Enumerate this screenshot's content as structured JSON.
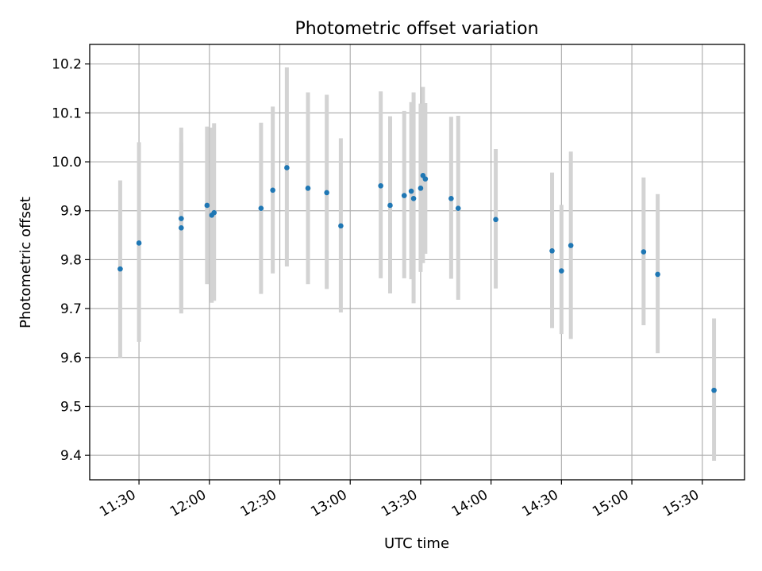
{
  "chart_data": {
    "type": "scatter",
    "title": "Photometric offset variation",
    "xlabel": "UTC time",
    "ylabel": "Photometric offset",
    "x_unit": "HH:MM UTC",
    "xlim": [
      "11:09",
      "15:48"
    ],
    "ylim": [
      9.35,
      10.24
    ],
    "x_ticks": [
      "11:30",
      "12:00",
      "12:30",
      "13:00",
      "13:30",
      "14:00",
      "14:30",
      "15:00",
      "15:30"
    ],
    "y_ticks": [
      "9.4",
      "9.5",
      "9.6",
      "9.7",
      "9.8",
      "9.9",
      "10.0",
      "10.1",
      "10.2"
    ],
    "grid": true,
    "colors": {
      "point": "#1f77b4",
      "errorbar": "#d3d3d3",
      "grid": "#b0b0b0"
    },
    "points": [
      {
        "x": "11:22",
        "y": 9.781,
        "lo": 9.6,
        "hi": 9.962
      },
      {
        "x": "11:30",
        "y": 9.834,
        "lo": 9.632,
        "hi": 10.04
      },
      {
        "x": "11:48",
        "y": 9.865,
        "lo": 9.69,
        "hi": 10.04
      },
      {
        "x": "11:48",
        "y": 9.884,
        "lo": 9.698,
        "hi": 10.07
      },
      {
        "x": "11:59",
        "y": 9.911,
        "lo": 9.75,
        "hi": 10.072
      },
      {
        "x": "12:01",
        "y": 9.891,
        "lo": 9.712,
        "hi": 10.07
      },
      {
        "x": "12:02",
        "y": 9.896,
        "lo": 9.716,
        "hi": 10.079
      },
      {
        "x": "12:22",
        "y": 9.905,
        "lo": 9.73,
        "hi": 10.08
      },
      {
        "x": "12:27",
        "y": 9.942,
        "lo": 9.772,
        "hi": 10.113
      },
      {
        "x": "12:33",
        "y": 9.988,
        "lo": 9.786,
        "hi": 10.193
      },
      {
        "x": "12:42",
        "y": 9.946,
        "lo": 9.75,
        "hi": 10.142
      },
      {
        "x": "12:50",
        "y": 9.937,
        "lo": 9.74,
        "hi": 10.137
      },
      {
        "x": "12:56",
        "y": 9.869,
        "lo": 9.692,
        "hi": 10.048
      },
      {
        "x": "13:13",
        "y": 9.951,
        "lo": 9.762,
        "hi": 10.144
      },
      {
        "x": "13:17",
        "y": 9.911,
        "lo": 9.731,
        "hi": 10.093
      },
      {
        "x": "13:23",
        "y": 9.931,
        "lo": 9.762,
        "hi": 10.104
      },
      {
        "x": "13:26",
        "y": 9.94,
        "lo": 9.76,
        "hi": 10.122
      },
      {
        "x": "13:27",
        "y": 9.925,
        "lo": 9.711,
        "hi": 10.142
      },
      {
        "x": "13:30",
        "y": 9.946,
        "lo": 9.775,
        "hi": 10.119
      },
      {
        "x": "13:31",
        "y": 9.972,
        "lo": 9.793,
        "hi": 10.153
      },
      {
        "x": "13:32",
        "y": 9.965,
        "lo": 9.812,
        "hi": 10.12
      },
      {
        "x": "13:43",
        "y": 9.925,
        "lo": 9.761,
        "hi": 10.092
      },
      {
        "x": "13:46",
        "y": 9.905,
        "lo": 9.718,
        "hi": 10.094
      },
      {
        "x": "14:02",
        "y": 9.882,
        "lo": 9.741,
        "hi": 10.026
      },
      {
        "x": "14:26",
        "y": 9.818,
        "lo": 9.66,
        "hi": 9.978
      },
      {
        "x": "14:30",
        "y": 9.777,
        "lo": 9.648,
        "hi": 9.912
      },
      {
        "x": "14:34",
        "y": 9.829,
        "lo": 9.638,
        "hi": 10.021
      },
      {
        "x": "15:05",
        "y": 9.816,
        "lo": 9.666,
        "hi": 9.968
      },
      {
        "x": "15:11",
        "y": 9.77,
        "lo": 9.609,
        "hi": 9.934
      },
      {
        "x": "15:35",
        "y": 9.533,
        "lo": 9.389,
        "hi": 9.68
      }
    ]
  }
}
